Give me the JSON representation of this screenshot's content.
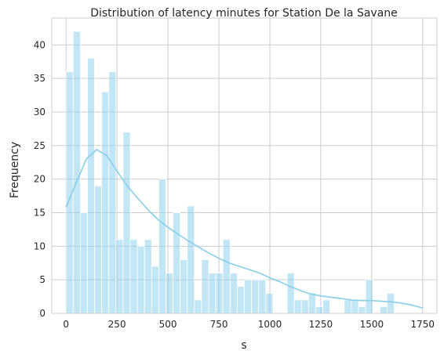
{
  "chart_data": {
    "type": "histogram",
    "title": "Distribution of latency minutes for Station De la Savane",
    "xlabel": "s",
    "ylabel": "Frequency",
    "xlim": [
      -70,
      1820
    ],
    "ylim": [
      0,
      44
    ],
    "x_ticks": [
      0,
      250,
      500,
      750,
      1000,
      1250,
      1500,
      1750
    ],
    "y_ticks": [
      0,
      5,
      10,
      15,
      20,
      25,
      30,
      35,
      40
    ],
    "grid": true,
    "bar_color": "#87ceeb",
    "bar_opacity": 0.5,
    "kde_color": "#87ceeb",
    "bin_start": 0,
    "bin_width": 35,
    "counts": [
      36,
      42,
      15,
      38,
      19,
      33,
      36,
      11,
      27,
      11,
      10,
      11,
      7,
      20,
      6,
      15,
      8,
      16,
      2,
      8,
      6,
      6,
      11,
      6,
      4,
      5,
      5,
      5,
      3,
      0,
      0,
      6,
      2,
      2,
      3,
      1,
      2,
      0,
      0,
      2,
      2,
      1,
      5,
      0,
      1,
      3,
      0
    ],
    "kde": {
      "x": [
        0,
        50,
        100,
        150,
        200,
        250,
        300,
        350,
        400,
        450,
        500,
        550,
        600,
        650,
        700,
        750,
        800,
        850,
        900,
        950,
        1000,
        1050,
        1100,
        1150,
        1200,
        1250,
        1300,
        1350,
        1400,
        1450,
        1500,
        1550,
        1600,
        1650,
        1700,
        1750
      ],
      "y": [
        15.8,
        19.5,
        23.0,
        24.4,
        23.5,
        21.2,
        19.0,
        17.2,
        15.5,
        14.0,
        12.8,
        11.8,
        10.8,
        9.9,
        9.0,
        8.2,
        7.5,
        7.0,
        6.5,
        6.0,
        5.3,
        4.7,
        4.0,
        3.4,
        2.9,
        2.6,
        2.4,
        2.2,
        2.0,
        1.9,
        1.9,
        1.8,
        1.7,
        1.5,
        1.2,
        0.8
      ]
    }
  }
}
